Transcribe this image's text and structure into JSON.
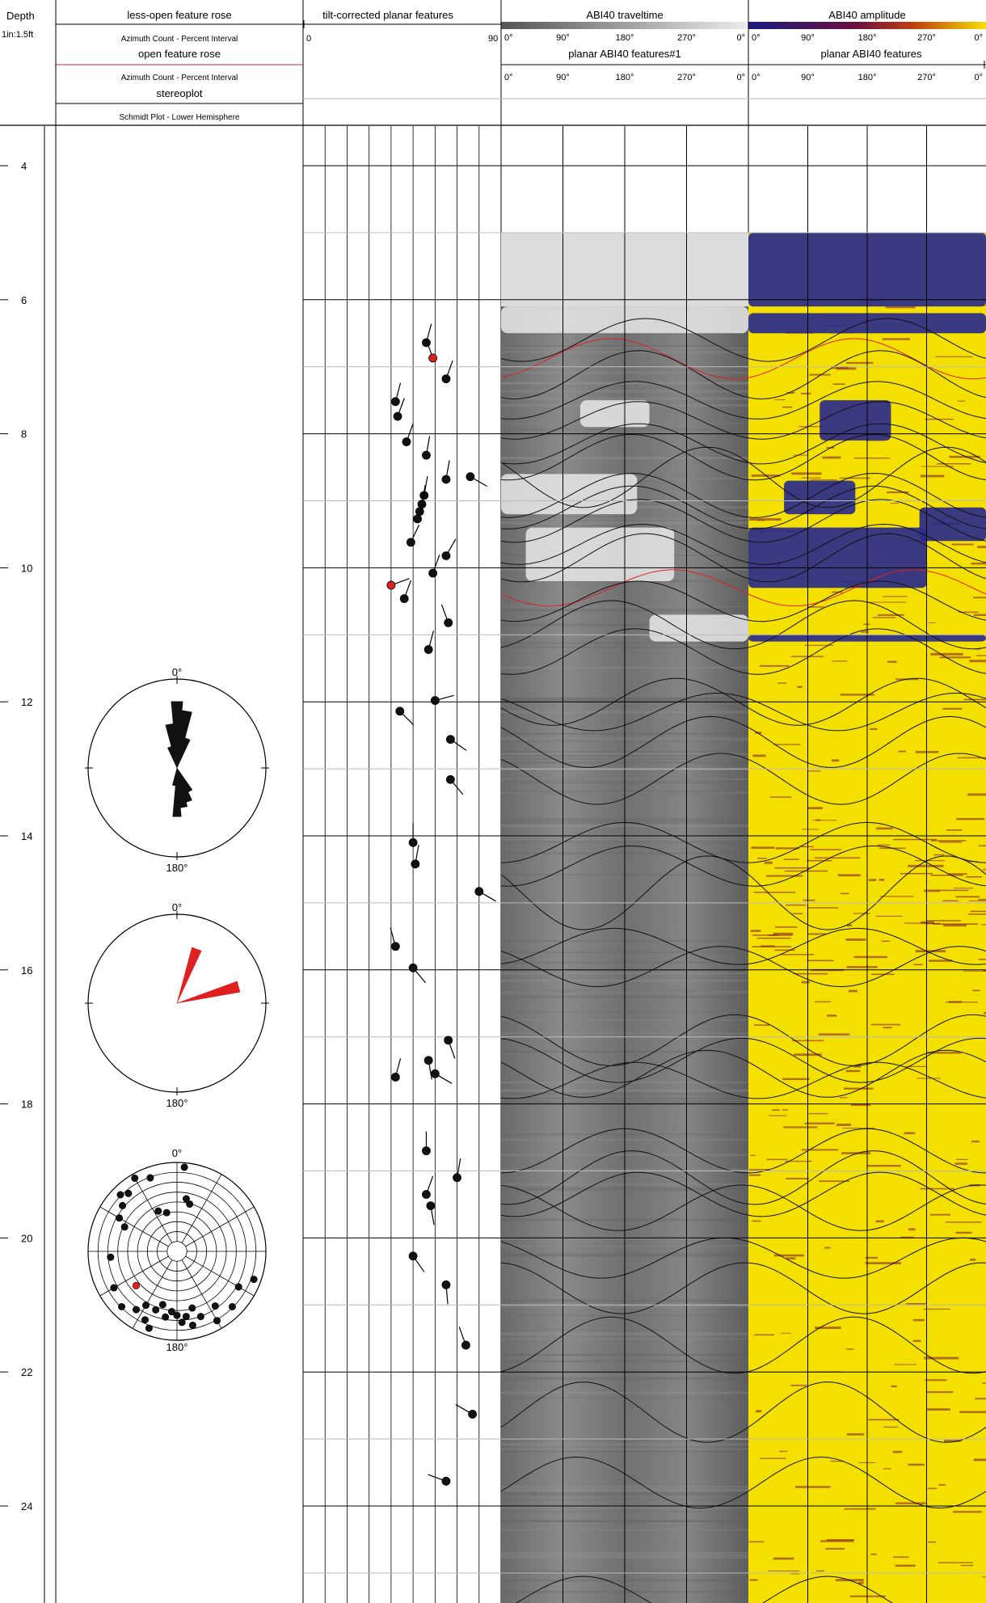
{
  "header": {
    "depth_title": "Depth",
    "depth_scale": "1in:1.5ft",
    "rose1_title": "less-open feature rose",
    "rose1_sub": "Azimuth Count - Percent Interval",
    "rose2_title": "open feature rose",
    "rose2_sub": "Azimuth Count - Percent Interval",
    "stereo_title": "stereoplot",
    "stereo_sub": "Schmidt Plot - Lower Hemisphere",
    "tilt_title": "tilt-corrected planar features",
    "tilt_min": "0",
    "tilt_max": "90",
    "travel_title": "ABI40 traveltime",
    "amp_title": "ABI40 amplitude",
    "planar1_title": "planar ABI40 features#1",
    "planar2_title": "planar ABI40 features",
    "azimuth_ticks": [
      "0°",
      "90°",
      "180°",
      "270°",
      "0°"
    ]
  },
  "colors": {
    "open_feature": "#e02020",
    "less_open_feature": "#111111",
    "amp_low": "#2a2a8a",
    "amp_mid": "#7a1030",
    "amp_high": "#f4e000",
    "travel_light": "#dcdcdc",
    "travel_dark": "#5a5a5a"
  },
  "chart_data": {
    "type": "borehole-log",
    "depth_range": [
      3,
      25.5
    ],
    "depth_ticks": [
      4,
      6,
      8,
      10,
      12,
      14,
      16,
      18,
      20,
      22,
      24
    ],
    "image_top_depth": 5.0,
    "rose_less_open": {
      "north_label": "0°",
      "south_label": "180°",
      "petals": [
        {
          "azimuth": 0,
          "length": 0.75
        },
        {
          "azimuth": 10,
          "length": 0.65
        },
        {
          "azimuth": 350,
          "length": 0.5
        },
        {
          "azimuth": 20,
          "length": 0.35
        },
        {
          "azimuth": 340,
          "length": 0.25
        },
        {
          "azimuth": 180,
          "length": 0.55
        },
        {
          "azimuth": 170,
          "length": 0.45
        },
        {
          "azimuth": 160,
          "length": 0.4
        },
        {
          "azimuth": 150,
          "length": 0.3
        },
        {
          "azimuth": 190,
          "length": 0.2
        }
      ]
    },
    "rose_open": {
      "north_label": "0°",
      "south_label": "180°",
      "petals": [
        {
          "azimuth": 20,
          "length": 0.65
        },
        {
          "azimuth": 75,
          "length": 0.72
        }
      ]
    },
    "stereonet_poles": [
      {
        "azimuth": 320,
        "radius": 0.85
      },
      {
        "azimuth": 315,
        "radius": 0.9
      },
      {
        "azimuth": 310,
        "radius": 0.8
      },
      {
        "azimuth": 300,
        "radius": 0.75
      },
      {
        "azimuth": 330,
        "radius": 0.95
      },
      {
        "azimuth": 340,
        "radius": 0.88
      },
      {
        "azimuth": 15,
        "radius": 0.55
      },
      {
        "azimuth": 10,
        "radius": 0.6
      },
      {
        "azimuth": 5,
        "radius": 0.95
      },
      {
        "azimuth": 345,
        "radius": 0.45
      },
      {
        "azimuth": 335,
        "radius": 0.5
      },
      {
        "azimuth": 295,
        "radius": 0.65
      },
      {
        "azimuth": 265,
        "radius": 0.75
      },
      {
        "azimuth": 230,
        "radius": 0.6,
        "open": true
      },
      {
        "azimuth": 215,
        "radius": 0.8
      },
      {
        "azimuth": 205,
        "radius": 0.85
      },
      {
        "azimuth": 200,
        "radius": 0.7
      },
      {
        "azimuth": 195,
        "radius": 0.62
      },
      {
        "azimuth": 190,
        "radius": 0.75
      },
      {
        "azimuth": 185,
        "radius": 0.68
      },
      {
        "azimuth": 180,
        "radius": 0.72
      },
      {
        "azimuth": 176,
        "radius": 0.8
      },
      {
        "azimuth": 172,
        "radius": 0.74
      },
      {
        "azimuth": 168,
        "radius": 0.85
      },
      {
        "azimuth": 165,
        "radius": 0.66
      },
      {
        "azimuth": 160,
        "radius": 0.78
      },
      {
        "azimuth": 150,
        "radius": 0.9
      },
      {
        "azimuth": 145,
        "radius": 0.75
      },
      {
        "azimuth": 135,
        "radius": 0.88
      },
      {
        "azimuth": 120,
        "radius": 0.8
      },
      {
        "azimuth": 110,
        "radius": 0.92
      },
      {
        "azimuth": 200,
        "radius": 0.92
      },
      {
        "azimuth": 210,
        "radius": 0.7
      },
      {
        "azimuth": 225,
        "radius": 0.88
      },
      {
        "azimuth": 240,
        "radius": 0.82
      }
    ],
    "tadpoles": [
      {
        "depth": 6.64,
        "dip": 56,
        "azimuth": 15
      },
      {
        "depth": 6.87,
        "dip": 59,
        "azimuth": 340,
        "open": true
      },
      {
        "depth": 7.18,
        "dip": 65,
        "azimuth": 20
      },
      {
        "depth": 7.52,
        "dip": 42,
        "azimuth": 15
      },
      {
        "depth": 7.74,
        "dip": 43,
        "azimuth": 20
      },
      {
        "depth": 8.12,
        "dip": 47,
        "azimuth": 20
      },
      {
        "depth": 8.32,
        "dip": 56,
        "azimuth": 10
      },
      {
        "depth": 8.64,
        "dip": 76,
        "azimuth": 120
      },
      {
        "depth": 8.68,
        "dip": 65,
        "azimuth": 10
      },
      {
        "depth": 8.92,
        "dip": 55,
        "azimuth": 10
      },
      {
        "depth": 9.05,
        "dip": 54,
        "azimuth": 10
      },
      {
        "depth": 9.16,
        "dip": 53,
        "azimuth": 15
      },
      {
        "depth": 9.27,
        "dip": 52,
        "azimuth": 20
      },
      {
        "depth": 9.62,
        "dip": 49,
        "azimuth": 25
      },
      {
        "depth": 9.82,
        "dip": 65,
        "azimuth": 30
      },
      {
        "depth": 10.08,
        "dip": 59,
        "azimuth": 20
      },
      {
        "depth": 10.26,
        "dip": 40,
        "azimuth": 70,
        "open": true
      },
      {
        "depth": 10.46,
        "dip": 46,
        "azimuth": 20
      },
      {
        "depth": 10.82,
        "dip": 66,
        "azimuth": 340
      },
      {
        "depth": 11.22,
        "dip": 57,
        "azimuth": 15
      },
      {
        "depth": 11.98,
        "dip": 60,
        "azimuth": 75
      },
      {
        "depth": 12.14,
        "dip": 44,
        "azimuth": 135
      },
      {
        "depth": 12.56,
        "dip": 67,
        "azimuth": 125
      },
      {
        "depth": 13.16,
        "dip": 67,
        "azimuth": 140
      },
      {
        "depth": 14.1,
        "dip": 50,
        "azimuth": 0
      },
      {
        "depth": 14.42,
        "dip": 51,
        "azimuth": 10
      },
      {
        "depth": 14.83,
        "dip": 80,
        "azimuth": 120
      },
      {
        "depth": 15.65,
        "dip": 42,
        "azimuth": 345
      },
      {
        "depth": 15.97,
        "dip": 50,
        "azimuth": 140
      },
      {
        "depth": 17.05,
        "dip": 66,
        "azimuth": 160
      },
      {
        "depth": 17.35,
        "dip": 57,
        "azimuth": 170
      },
      {
        "depth": 17.55,
        "dip": 60,
        "azimuth": 120
      },
      {
        "depth": 17.6,
        "dip": 42,
        "azimuth": 15
      },
      {
        "depth": 18.7,
        "dip": 56,
        "azimuth": 0
      },
      {
        "depth": 19.1,
        "dip": 70,
        "azimuth": 10
      },
      {
        "depth": 19.35,
        "dip": 56,
        "azimuth": 20
      },
      {
        "depth": 19.52,
        "dip": 58,
        "azimuth": 170
      },
      {
        "depth": 20.27,
        "dip": 50,
        "azimuth": 145
      },
      {
        "depth": 20.7,
        "dip": 65,
        "azimuth": 175
      },
      {
        "depth": 21.6,
        "dip": 74,
        "azimuth": 340
      },
      {
        "depth": 22.63,
        "dip": 77,
        "azimuth": 300
      },
      {
        "depth": 23.63,
        "dip": 65,
        "azimuth": 290
      }
    ],
    "sinusoids": [
      {
        "depth": 6.6,
        "amplitude": 0.32,
        "phase": 30
      },
      {
        "depth": 6.88,
        "amplitude": 0.3,
        "phase": 340,
        "open": true
      },
      {
        "depth": 7.12,
        "amplitude": 0.36,
        "phase": 20
      },
      {
        "depth": 7.5,
        "amplitude": 0.28,
        "phase": 15
      },
      {
        "depth": 7.8,
        "amplitude": 0.28,
        "phase": 20
      },
      {
        "depth": 8.15,
        "amplitude": 0.3,
        "phase": 20
      },
      {
        "depth": 8.35,
        "amplitude": 0.34,
        "phase": 10
      },
      {
        "depth": 8.65,
        "amplitude": 0.45,
        "phase": 120
      },
      {
        "depth": 8.92,
        "amplitude": 0.33,
        "phase": 10
      },
      {
        "depth": 9.1,
        "amplitude": 0.32,
        "phase": 10
      },
      {
        "depth": 9.3,
        "amplitude": 0.32,
        "phase": 20
      },
      {
        "depth": 9.65,
        "amplitude": 0.3,
        "phase": 25
      },
      {
        "depth": 9.85,
        "amplitude": 0.36,
        "phase": 30
      },
      {
        "depth": 10.3,
        "amplitude": 0.27,
        "phase": 70,
        "open": true
      },
      {
        "depth": 10.5,
        "amplitude": 0.3,
        "phase": 20
      },
      {
        "depth": 10.85,
        "amplitude": 0.36,
        "phase": 340
      },
      {
        "depth": 11.25,
        "amplitude": 0.34,
        "phase": 15
      },
      {
        "depth": 12.0,
        "amplitude": 0.35,
        "phase": 75
      },
      {
        "depth": 12.15,
        "amplitude": 0.28,
        "phase": 135
      },
      {
        "depth": 12.6,
        "amplitude": 0.38,
        "phase": 125
      },
      {
        "depth": 13.15,
        "amplitude": 0.38,
        "phase": 140
      },
      {
        "depth": 14.1,
        "amplitude": 0.3,
        "phase": 0
      },
      {
        "depth": 14.45,
        "amplitude": 0.3,
        "phase": 10
      },
      {
        "depth": 14.85,
        "amplitude": 0.55,
        "phase": 120
      },
      {
        "depth": 15.65,
        "amplitude": 0.27,
        "phase": 345
      },
      {
        "depth": 15.95,
        "amplitude": 0.3,
        "phase": 140
      },
      {
        "depth": 17.05,
        "amplitude": 0.38,
        "phase": 160
      },
      {
        "depth": 17.35,
        "amplitude": 0.33,
        "phase": 170
      },
      {
        "depth": 17.55,
        "amplitude": 0.35,
        "phase": 120
      },
      {
        "depth": 17.65,
        "amplitude": 0.27,
        "phase": 15
      },
      {
        "depth": 18.7,
        "amplitude": 0.33,
        "phase": 0
      },
      {
        "depth": 19.1,
        "amplitude": 0.4,
        "phase": 10
      },
      {
        "depth": 19.35,
        "amplitude": 0.33,
        "phase": 20
      },
      {
        "depth": 19.55,
        "amplitude": 0.34,
        "phase": 170
      },
      {
        "depth": 20.3,
        "amplitude": 0.3,
        "phase": 145
      },
      {
        "depth": 20.75,
        "amplitude": 0.38,
        "phase": 175
      },
      {
        "depth": 21.6,
        "amplitude": 0.42,
        "phase": 340
      },
      {
        "depth": 22.6,
        "amplitude": 0.45,
        "phase": 300
      },
      {
        "depth": 23.65,
        "amplitude": 0.38,
        "phase": 290
      },
      {
        "depth": 25.4,
        "amplitude": 0.35,
        "phase": 300
      }
    ],
    "amplitude_blue_patches": [
      {
        "depth_top": 5.0,
        "depth_bottom": 6.1,
        "x_from": 0.0,
        "x_to": 1.0
      },
      {
        "depth_top": 7.5,
        "depth_bottom": 8.1,
        "x_from": 0.3,
        "x_to": 0.6
      },
      {
        "depth_top": 8.7,
        "depth_bottom": 9.2,
        "x_from": 0.15,
        "x_to": 0.45
      },
      {
        "depth_top": 9.1,
        "depth_bottom": 9.6,
        "x_from": 0.72,
        "x_to": 1.0
      },
      {
        "depth_top": 9.4,
        "depth_bottom": 10.3,
        "x_from": 0.0,
        "x_to": 0.75
      },
      {
        "depth_top": 6.2,
        "depth_bottom": 6.5,
        "x_from": 0.0,
        "x_to": 1.0
      },
      {
        "depth_top": 11.0,
        "depth_bottom": 11.1,
        "x_from": 0.0,
        "x_to": 1.0
      }
    ],
    "traveltime_white_patches": [
      {
        "depth_top": 7.5,
        "depth_bottom": 7.9,
        "x_from": 0.32,
        "x_to": 0.6
      },
      {
        "depth_top": 8.6,
        "depth_bottom": 9.2,
        "x_from": 0.0,
        "x_to": 0.55
      },
      {
        "depth_top": 9.4,
        "depth_bottom": 10.2,
        "x_from": 0.1,
        "x_to": 0.7
      },
      {
        "depth_top": 6.1,
        "depth_bottom": 6.5,
        "x_from": 0.0,
        "x_to": 1.0
      },
      {
        "depth_top": 10.7,
        "depth_bottom": 11.1,
        "x_from": 0.6,
        "x_to": 1.0
      }
    ]
  }
}
